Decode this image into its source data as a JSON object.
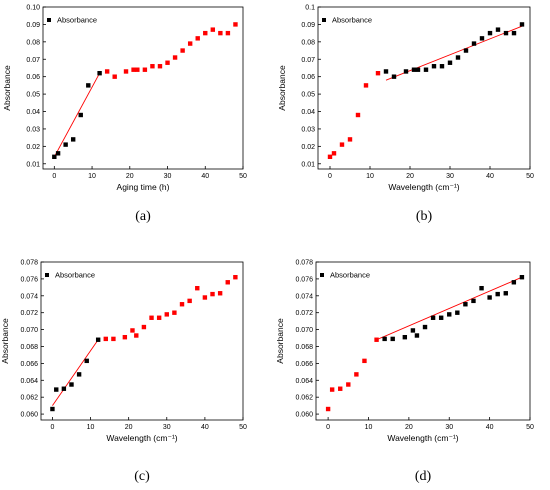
{
  "chart_data": [
    {
      "type": "scatter",
      "panel_label": "(a)",
      "xlabel": "Aging time (h)",
      "ylabel": "Absorbance",
      "legend": "Absorbance",
      "legend_position": "top-left",
      "xlim": [
        -3,
        50
      ],
      "ylim": [
        0.007,
        0.1
      ],
      "xticks": [
        0,
        10,
        20,
        30,
        40,
        50
      ],
      "yticks": [
        0.01,
        0.02,
        0.03,
        0.04,
        0.05,
        0.06,
        0.07,
        0.08,
        0.09,
        0.1
      ],
      "ytick_labels": [
        "0.01",
        "0.02",
        "0.03",
        "0.04",
        "0.05",
        "0.06",
        "0.07",
        "0.08",
        "0.09",
        "0.10"
      ],
      "x": [
        0,
        1,
        3,
        5,
        7,
        9,
        12,
        14,
        16,
        19,
        21,
        22,
        24,
        26,
        28,
        30,
        32,
        34,
        36,
        38,
        40,
        42,
        44,
        46,
        48
      ],
      "y": [
        0.014,
        0.016,
        0.021,
        0.024,
        0.038,
        0.055,
        0.062,
        0.063,
        0.06,
        0.063,
        0.064,
        0.064,
        0.064,
        0.066,
        0.066,
        0.068,
        0.071,
        0.075,
        0.079,
        0.082,
        0.085,
        0.087,
        0.085,
        0.085,
        0.09
      ],
      "point_colors": [
        "#000000",
        "#000000",
        "#000000",
        "#000000",
        "#000000",
        "#000000",
        "#000000",
        "#ff0000",
        "#ff0000",
        "#ff0000",
        "#ff0000",
        "#ff0000",
        "#ff0000",
        "#ff0000",
        "#ff0000",
        "#ff0000",
        "#ff0000",
        "#ff0000",
        "#ff0000",
        "#ff0000",
        "#ff0000",
        "#ff0000",
        "#ff0000",
        "#ff0000",
        "#ff0000"
      ],
      "fit_line": [
        [
          0,
          0.014
        ],
        [
          12,
          0.062
        ]
      ]
    },
    {
      "type": "scatter",
      "panel_label": "(b)",
      "xlabel": "Wavelength (cm⁻¹)",
      "ylabel": "Absorbance",
      "legend": "Absorbance",
      "legend_position": "top-left",
      "xlim": [
        -3,
        50
      ],
      "ylim": [
        0.007,
        0.1
      ],
      "xticks": [
        0,
        10,
        20,
        30,
        40,
        50
      ],
      "yticks": [
        0.01,
        0.02,
        0.03,
        0.04,
        0.05,
        0.06,
        0.07,
        0.08,
        0.09,
        0.1
      ],
      "ytick_labels": [
        "0.01",
        "0.02",
        "0.03",
        "0.04",
        "0.05",
        "0.06",
        "0.07",
        "0.08",
        "0.09",
        "0.1"
      ],
      "x": [
        0,
        1,
        3,
        5,
        7,
        9,
        12,
        14,
        16,
        19,
        21,
        22,
        24,
        26,
        28,
        30,
        32,
        34,
        36,
        38,
        40,
        42,
        44,
        46,
        48
      ],
      "y": [
        0.014,
        0.016,
        0.021,
        0.024,
        0.038,
        0.055,
        0.062,
        0.063,
        0.06,
        0.063,
        0.064,
        0.064,
        0.064,
        0.066,
        0.066,
        0.068,
        0.071,
        0.075,
        0.079,
        0.082,
        0.085,
        0.087,
        0.085,
        0.085,
        0.09
      ],
      "point_colors": [
        "#ff0000",
        "#ff0000",
        "#ff0000",
        "#ff0000",
        "#ff0000",
        "#ff0000",
        "#ff0000",
        "#000000",
        "#000000",
        "#000000",
        "#000000",
        "#000000",
        "#000000",
        "#000000",
        "#000000",
        "#000000",
        "#000000",
        "#000000",
        "#000000",
        "#000000",
        "#000000",
        "#000000",
        "#000000",
        "#000000",
        "#000000"
      ],
      "fit_line": [
        [
          14,
          0.058
        ],
        [
          48,
          0.089
        ]
      ]
    },
    {
      "type": "scatter",
      "panel_label": "(c)",
      "xlabel": "Wavelength (cm⁻¹)",
      "ylabel": "Absorbance",
      "legend": "Absorbance",
      "legend_position": "top-left",
      "xlim": [
        -3,
        50
      ],
      "ylim": [
        0.0593,
        0.078
      ],
      "xticks": [
        0,
        10,
        20,
        30,
        40,
        50
      ],
      "yticks": [
        0.06,
        0.062,
        0.064,
        0.066,
        0.068,
        0.07,
        0.072,
        0.074,
        0.076,
        0.078
      ],
      "ytick_labels": [
        "0.060",
        "0.062",
        "0.064",
        "0.066",
        "0.068",
        "0.070",
        "0.072",
        "0.074",
        "0.076",
        "0.078"
      ],
      "x": [
        0,
        1,
        3,
        5,
        7,
        9,
        12,
        14,
        16,
        19,
        21,
        22,
        24,
        26,
        28,
        30,
        32,
        34,
        36,
        38,
        40,
        42,
        44,
        46,
        48
      ],
      "y": [
        0.0606,
        0.0629,
        0.063,
        0.0635,
        0.0647,
        0.0663,
        0.0688,
        0.0689,
        0.0689,
        0.0691,
        0.0699,
        0.0693,
        0.0703,
        0.0714,
        0.0714,
        0.0718,
        0.072,
        0.073,
        0.0734,
        0.0749,
        0.0738,
        0.0742,
        0.0743,
        0.0756,
        0.0762
      ],
      "point_colors": [
        "#000000",
        "#000000",
        "#000000",
        "#000000",
        "#000000",
        "#000000",
        "#000000",
        "#ff0000",
        "#ff0000",
        "#ff0000",
        "#ff0000",
        "#ff0000",
        "#ff0000",
        "#ff0000",
        "#ff0000",
        "#ff0000",
        "#ff0000",
        "#ff0000",
        "#ff0000",
        "#ff0000",
        "#ff0000",
        "#ff0000",
        "#ff0000",
        "#ff0000",
        "#ff0000"
      ],
      "fit_line": [
        [
          0,
          0.061
        ],
        [
          12,
          0.0688
        ]
      ]
    },
    {
      "type": "scatter",
      "panel_label": "(d)",
      "xlabel": "Wavelength (cm⁻¹)",
      "ylabel": "Absorbance",
      "legend": "Absorbance",
      "legend_position": "top-left",
      "xlim": [
        -3,
        50
      ],
      "ylim": [
        0.0593,
        0.078
      ],
      "xticks": [
        0,
        10,
        20,
        30,
        40,
        50
      ],
      "yticks": [
        0.06,
        0.062,
        0.064,
        0.066,
        0.068,
        0.07,
        0.072,
        0.074,
        0.076,
        0.078
      ],
      "ytick_labels": [
        "0.060",
        "0.062",
        "0.064",
        "0.066",
        "0.068",
        "0.070",
        "0.072",
        "0.074",
        "0.076",
        "0.078"
      ],
      "x": [
        0,
        1,
        3,
        5,
        7,
        9,
        12,
        14,
        16,
        19,
        21,
        22,
        24,
        26,
        28,
        30,
        32,
        34,
        36,
        38,
        40,
        42,
        44,
        46,
        48
      ],
      "y": [
        0.0606,
        0.0629,
        0.063,
        0.0635,
        0.0647,
        0.0663,
        0.0688,
        0.0689,
        0.0689,
        0.0691,
        0.0699,
        0.0693,
        0.0703,
        0.0714,
        0.0714,
        0.0718,
        0.072,
        0.073,
        0.0734,
        0.0749,
        0.0738,
        0.0742,
        0.0743,
        0.0756,
        0.0762
      ],
      "point_colors": [
        "#ff0000",
        "#ff0000",
        "#ff0000",
        "#ff0000",
        "#ff0000",
        "#ff0000",
        "#ff0000",
        "#000000",
        "#000000",
        "#000000",
        "#000000",
        "#000000",
        "#000000",
        "#000000",
        "#000000",
        "#000000",
        "#000000",
        "#000000",
        "#000000",
        "#000000",
        "#000000",
        "#000000",
        "#000000",
        "#000000",
        "#000000"
      ],
      "fit_line": [
        [
          12,
          0.0688
        ],
        [
          48,
          0.0762
        ]
      ]
    }
  ],
  "colors": {
    "fit_line": "#ff0000",
    "axis": "#000000",
    "background": "#ffffff"
  }
}
